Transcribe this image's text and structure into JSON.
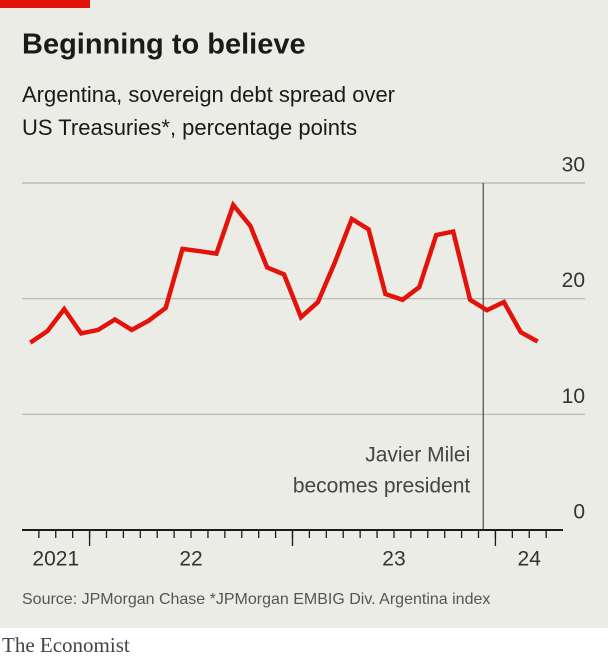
{
  "chart_data": {
    "type": "line",
    "title": "Beginning to believe",
    "subtitle": [
      "Argentina, sovereign debt spread over",
      "US Treasuries*, percentage points"
    ],
    "x": [
      2021.708,
      2021.792,
      2021.875,
      2021.958,
      2022.042,
      2022.125,
      2022.208,
      2022.292,
      2022.375,
      2022.458,
      2022.542,
      2022.625,
      2022.708,
      2022.792,
      2022.875,
      2022.958,
      2023.042,
      2023.125,
      2023.208,
      2023.292,
      2023.375,
      2023.458,
      2023.542,
      2023.625,
      2023.708,
      2023.792,
      2023.875,
      2023.958,
      2024.042,
      2024.125,
      2024.208
    ],
    "series": [
      {
        "color": "#e3120b",
        "values": [
          16.2,
          17.2,
          19.1,
          17.0,
          17.3,
          18.2,
          17.3,
          18.1,
          19.2,
          24.3,
          24.1,
          23.9,
          28.1,
          26.3,
          22.7,
          22.1,
          18.4,
          19.7,
          23.1,
          26.9,
          26.0,
          20.4,
          19.9,
          21.0,
          25.5,
          25.8,
          19.9,
          19.0,
          19.7,
          17.1,
          16.3
        ]
      }
    ],
    "xlim": [
      2021.667,
      2024.333
    ],
    "xticks": [
      {
        "value": 2021,
        "label": "2021"
      },
      {
        "value": 2022,
        "label": "22"
      },
      {
        "value": 2023,
        "label": "23"
      },
      {
        "value": 2024,
        "label": "24"
      }
    ],
    "ylim": [
      0,
      30
    ],
    "yticks": [
      0,
      10,
      20,
      30
    ],
    "grid": true,
    "annotation": {
      "x": 2023.94,
      "lines": [
        "Javier Milei",
        "becomes president"
      ]
    },
    "source": "Source: JPMorgan Chase  *JPMorgan EMBIG Div. Argentina index",
    "brand": "The Economist"
  }
}
